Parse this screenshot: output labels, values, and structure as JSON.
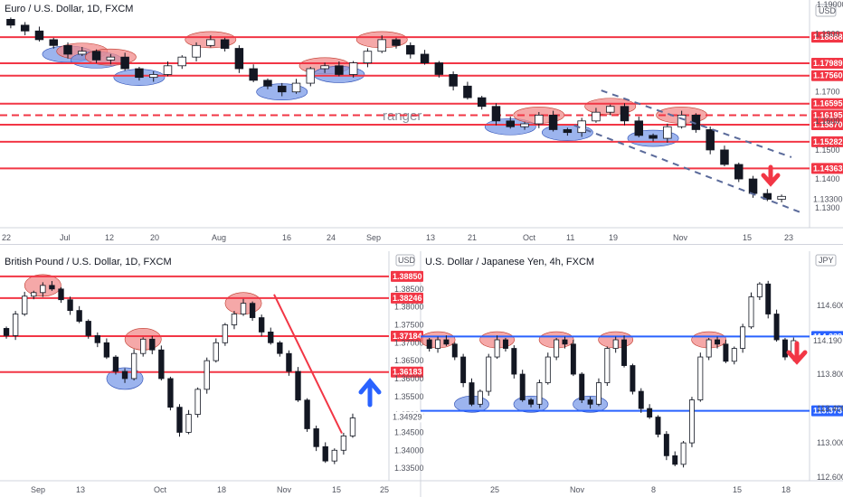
{
  "colors": {
    "support_resistance": "#f23645",
    "blue_level": "#2962ff",
    "bullish_body": "#ffffff",
    "bearish_body": "#131722",
    "red_zone": "#f28b8b",
    "blue_zone": "#7b9be8",
    "trend_dash": "#5a6a9a",
    "arrow_down": "#f23645",
    "arrow_up": "#2962ff",
    "panel_border": "#d1d4dc"
  },
  "chart_data": [
    {
      "type": "candlestick",
      "title": "Euro / U.S. Dollar, 1D, FXCM",
      "currency_badge": "USD",
      "annotation": "ranger",
      "x_ticks": [
        "22",
        "Jul",
        "12",
        "20",
        "Aug",
        "16",
        "24",
        "Sep",
        "13",
        "21",
        "Oct",
        "11",
        "19",
        "Nov",
        "15",
        "23"
      ],
      "y_ticks": [
        "1.1900",
        "1.1700",
        "1.1600",
        "1.1500",
        "1.1400",
        "1.1300"
      ],
      "price_top_label": "1.19000",
      "ylim": [
        1.126,
        1.197
      ],
      "levels": [
        {
          "label": "1.18888",
          "value": 1.18888,
          "style": "solid"
        },
        {
          "label": "1.17989",
          "value": 1.17989,
          "style": "solid"
        },
        {
          "label": "1.17560",
          "value": 1.1756,
          "style": "solid"
        },
        {
          "label": "1.16595",
          "value": 1.16595,
          "style": "solid"
        },
        {
          "label": "1.16195",
          "value": 1.16195,
          "style": "dashed"
        },
        {
          "label": "1.15870",
          "value": 1.1587,
          "style": "solid"
        },
        {
          "label": "1.15282",
          "value": 1.15282,
          "style": "solid"
        },
        {
          "label": "1.14363",
          "value": 1.14363,
          "style": "solid"
        }
      ],
      "last_price_label": "1.13300",
      "trend_channel": "descending, dashed",
      "signal": "down arrow",
      "approx_closes": [
        1.193,
        1.191,
        1.188,
        1.186,
        1.183,
        1.184,
        1.181,
        1.182,
        1.178,
        1.175,
        1.176,
        1.179,
        1.182,
        1.186,
        1.188,
        1.185,
        1.178,
        1.174,
        1.172,
        1.17,
        1.173,
        1.178,
        1.179,
        1.176,
        1.18,
        1.184,
        1.188,
        1.186,
        1.183,
        1.18,
        1.176,
        1.172,
        1.168,
        1.165,
        1.16,
        1.158,
        1.159,
        1.162,
        1.157,
        1.156,
        1.16,
        1.163,
        1.165,
        1.16,
        1.155,
        1.154,
        1.158,
        1.162,
        1.157,
        1.15,
        1.145,
        1.14,
        1.135,
        1.133,
        1.134
      ]
    },
    {
      "type": "candlestick",
      "title": "British Pound / U.S. Dollar, 1D, FXCM",
      "currency_badge": "USD",
      "x_ticks": [
        "Sep",
        "13",
        "Oct",
        "18",
        "Nov",
        "15",
        "25"
      ],
      "y_ticks": [
        "1.38500",
        "1.38000",
        "1.37500",
        "1.37000",
        "1.36500",
        "1.36000",
        "1.35500",
        "1.35000",
        "1.34500",
        "1.34000",
        "1.33500"
      ],
      "ylim": [
        1.3325,
        1.3905
      ],
      "levels": [
        {
          "label": "1.38850",
          "value": 1.3885,
          "style": "solid"
        },
        {
          "label": "1.38246",
          "value": 1.38246,
          "style": "solid"
        },
        {
          "label": "1.37184",
          "value": 1.37184,
          "style": "solid"
        },
        {
          "label": "1.36183",
          "value": 1.36183,
          "style": "solid"
        }
      ],
      "last_price_label": "1.34929",
      "signal": "up arrow",
      "approx_closes": [
        1.372,
        1.378,
        1.383,
        1.384,
        1.386,
        1.385,
        1.382,
        1.379,
        1.376,
        1.372,
        1.37,
        1.366,
        1.362,
        1.36,
        1.367,
        1.371,
        1.368,
        1.36,
        1.352,
        1.345,
        1.35,
        1.357,
        1.365,
        1.37,
        1.375,
        1.378,
        1.381,
        1.377,
        1.373,
        1.37,
        1.367,
        1.362,
        1.354,
        1.346,
        1.341,
        1.337,
        1.34,
        1.344,
        1.349
      ]
    },
    {
      "type": "candlestick",
      "title": "U.S. Dollar / Japanese Yen, 4h, FXCM",
      "currency_badge": "JPY",
      "x_ticks": [
        "25",
        "Nov",
        "8",
        "15",
        "18"
      ],
      "y_ticks": [
        "114.600",
        "114.190",
        "113.800",
        "113.400",
        "113.000",
        "112.600"
      ],
      "ylim": [
        112.58,
        115.0
      ],
      "levels": [
        {
          "label": "114.239",
          "value": 114.239,
          "style": "solid"
        },
        {
          "label": "113.373",
          "value": 113.373,
          "style": "solid"
        }
      ],
      "last_price_label": "114.190",
      "signal": "down arrow",
      "approx_closes": [
        114.1,
        114.2,
        114.15,
        114.0,
        113.7,
        113.45,
        113.6,
        114.0,
        114.2,
        114.1,
        113.8,
        113.5,
        113.45,
        113.7,
        114.0,
        114.2,
        114.15,
        113.8,
        113.5,
        113.45,
        113.7,
        114.1,
        114.2,
        113.9,
        113.6,
        113.4,
        113.3,
        113.1,
        112.85,
        112.75,
        113.0,
        113.5,
        114.0,
        114.2,
        114.15,
        113.95,
        114.1,
        114.35,
        114.7,
        114.85,
        114.5,
        114.2,
        114.0,
        114.19
      ]
    }
  ]
}
